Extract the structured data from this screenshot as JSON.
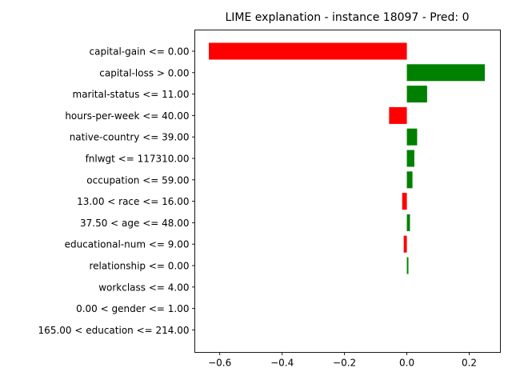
{
  "chart_data": {
    "type": "bar",
    "orientation": "horizontal",
    "title": "LIME explanation - instance 18097 - Pred: 0",
    "xlabel": "",
    "ylabel": "",
    "xlim": [
      -0.68,
      0.3
    ],
    "xticks": [
      -0.6,
      -0.4,
      -0.2,
      0.0,
      0.2
    ],
    "xtick_labels": [
      "−0.6",
      "−0.4",
      "−0.2",
      "0.0",
      "0.2"
    ],
    "grid": false,
    "legend": "none",
    "colors": {
      "positive": "#008000",
      "negative": "#ff0000"
    },
    "categories": [
      "capital-gain <= 0.00",
      "capital-loss > 0.00",
      "marital-status <= 11.00",
      "hours-per-week <= 40.00",
      "native-country <= 39.00",
      "fnlwgt <= 117310.00",
      "occupation <= 59.00",
      "13.00 < race <= 16.00",
      "37.50 < age <= 48.00",
      "educational-num <= 9.00",
      "relationship <= 0.00",
      "workclass <= 4.00",
      "0.00 < gender <= 1.00",
      "165.00 < education <= 214.00"
    ],
    "values": [
      -0.635,
      0.25,
      0.065,
      -0.057,
      0.033,
      0.024,
      0.018,
      -0.015,
      0.01,
      -0.01,
      0.005,
      0.0,
      0.0,
      0.0
    ]
  }
}
